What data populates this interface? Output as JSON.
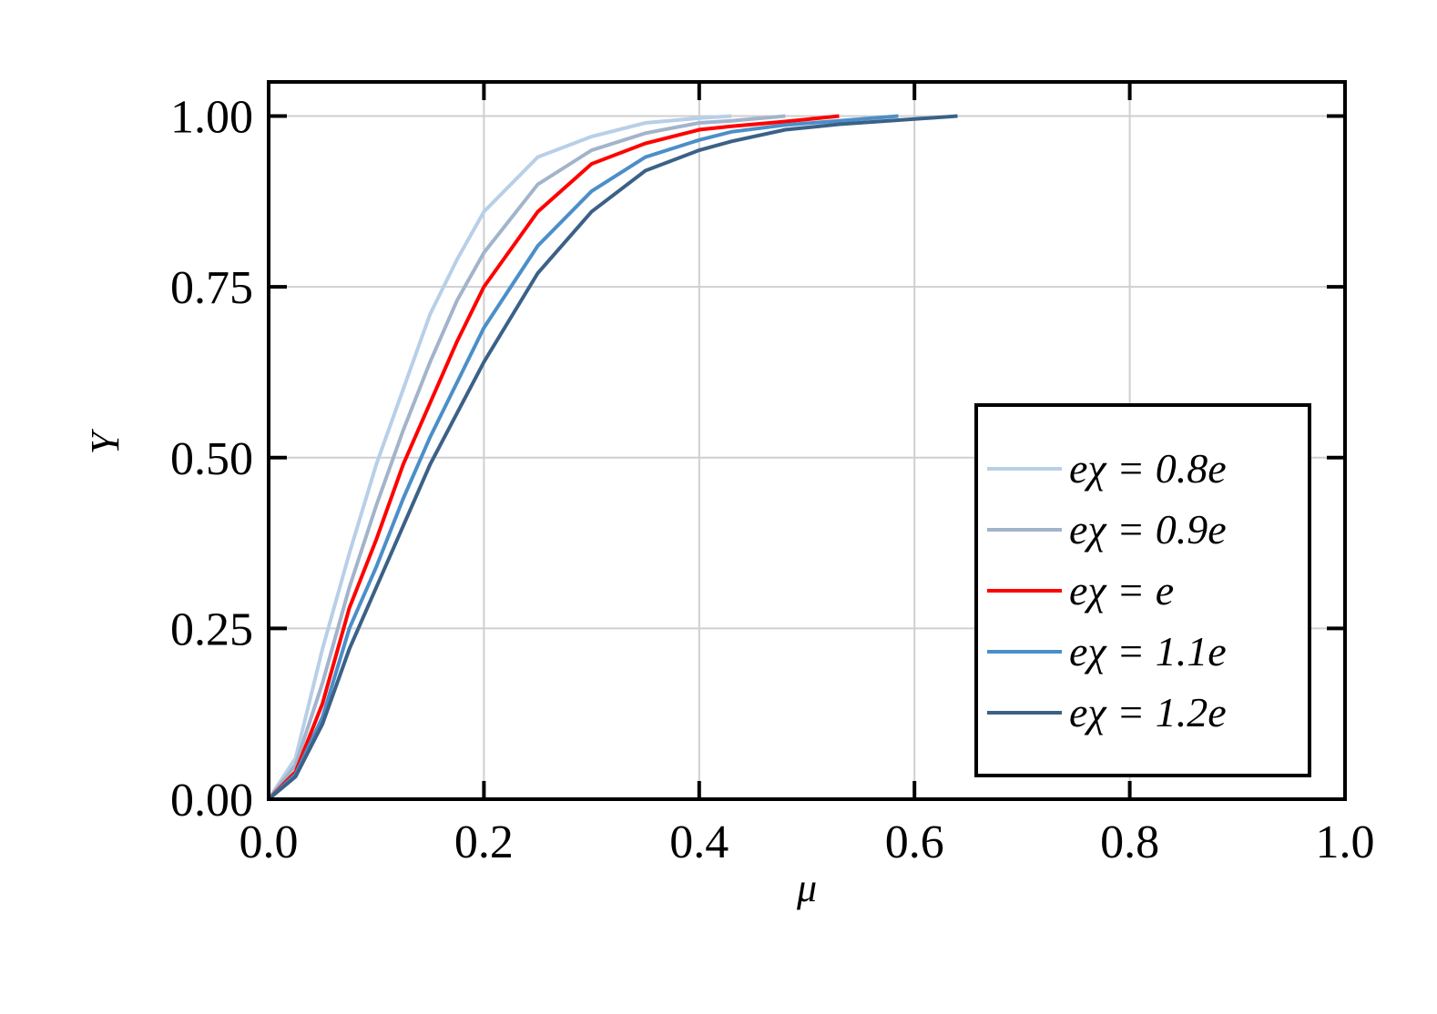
{
  "chart_data": {
    "type": "line",
    "x_label": "μ",
    "y_label": "Y",
    "x": [
      0,
      0.025,
      0.05,
      0.075,
      0.1,
      0.125,
      0.15,
      0.175,
      0.2,
      0.25,
      0.3,
      0.35,
      0.4,
      0.43,
      0.48,
      0.53,
      0.585,
      0.64
    ],
    "series": [
      {
        "name": "eχ = 0.8e",
        "color": "#b8cfe8",
        "values": [
          0,
          0.06,
          0.22,
          0.36,
          0.49,
          0.6,
          0.71,
          0.79,
          0.86,
          0.94,
          0.97,
          0.99,
          0.997,
          1.0,
          null,
          null,
          null,
          null
        ]
      },
      {
        "name": "eχ = 0.9e",
        "color": "#a2b4cb",
        "values": [
          0,
          0.05,
          0.17,
          0.31,
          0.43,
          0.54,
          0.64,
          0.73,
          0.8,
          0.9,
          0.95,
          0.975,
          0.99,
          0.993,
          1.0,
          null,
          null,
          null
        ]
      },
      {
        "name": "eχ = e",
        "color": "#ff0000",
        "values": [
          0,
          0.04,
          0.14,
          0.28,
          0.38,
          0.49,
          0.58,
          0.67,
          0.75,
          0.86,
          0.93,
          0.96,
          0.98,
          0.985,
          0.992,
          1.0,
          null,
          null
        ]
      },
      {
        "name": "eχ = 1.1e",
        "color": "#4b8fc9",
        "values": [
          0,
          0.036,
          0.12,
          0.25,
          0.34,
          0.44,
          0.53,
          0.61,
          0.69,
          0.81,
          0.89,
          0.94,
          0.965,
          0.977,
          0.987,
          0.993,
          1.0,
          null
        ]
      },
      {
        "name": "eχ = 1.2e",
        "color": "#3b6187",
        "values": [
          0,
          0.033,
          0.11,
          0.22,
          0.31,
          0.4,
          0.49,
          0.565,
          0.64,
          0.77,
          0.86,
          0.92,
          0.95,
          0.963,
          0.98,
          0.988,
          0.994,
          1.0
        ]
      }
    ],
    "xlim": [
      0,
      1
    ],
    "ylim": [
      0,
      1.05
    ],
    "xticks": [
      {
        "value": 0,
        "label": "0.0"
      },
      {
        "value": 0.2,
        "label": "0.2"
      },
      {
        "value": 0.4,
        "label": "0.4"
      },
      {
        "value": 0.6,
        "label": "0.6"
      },
      {
        "value": 0.8,
        "label": "0.8"
      },
      {
        "value": 1,
        "label": "1.0"
      }
    ],
    "yticks": [
      {
        "value": 0,
        "label": "0.00"
      },
      {
        "value": 0.25,
        "label": "0.25"
      },
      {
        "value": 0.5,
        "label": "0.50"
      },
      {
        "value": 0.75,
        "label": "0.75"
      },
      {
        "value": 1,
        "label": "1.00"
      }
    ],
    "grid": true,
    "legend": "lower right"
  }
}
